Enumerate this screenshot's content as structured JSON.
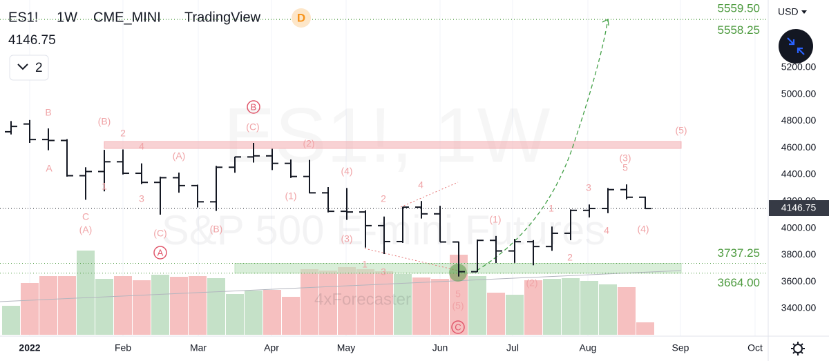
{
  "chart_data": {
    "type": "ohlc",
    "symbol": "ES1!",
    "interval": "1W",
    "exchange": "CME_MINI",
    "source": "TradingView",
    "badge": "D",
    "layout_count": "2",
    "currency": "USD",
    "watermark": "ES1!, 1W",
    "watermark_subtitle": "S&P 500 E-mini Futures",
    "author_watermark": "4xForecaster",
    "open": [
      4720,
      4778,
      4662,
      4655,
      4392,
      4423,
      4496,
      4410,
      4342,
      4377,
      4318,
      4197,
      4455,
      4532,
      4540,
      4484,
      4386,
      4264,
      4126,
      4121,
      4019,
      3900,
      4157,
      4107,
      3897,
      3675,
      3909,
      3830,
      3899,
      3863,
      3962,
      4133,
      4147,
      4288,
      4231
    ],
    "high": [
      4800,
      4808,
      4745,
      4665,
      4455,
      4585,
      4588,
      4484,
      4385,
      4415,
      4325,
      4465,
      4534,
      4637,
      4593,
      4513,
      4510,
      4307,
      4300,
      4134,
      4087,
      4160,
      4203,
      4167,
      3900,
      3915,
      3942,
      3920,
      3911,
      4012,
      4140,
      4177,
      4300,
      4327,
      4236
    ],
    "low": [
      4700,
      4637,
      4582,
      4385,
      4212,
      4275,
      4401,
      4329,
      4101,
      4265,
      4155,
      4129,
      4414,
      4490,
      4434,
      4375,
      4260,
      4118,
      4062,
      3855,
      3807,
      3890,
      4072,
      3897,
      3639,
      3673,
      3740,
      3741,
      3723,
      3831,
      3910,
      4080,
      4112,
      4216,
      4145
    ],
    "close": [
      4760,
      4662,
      4655,
      4392,
      4423,
      4496,
      4410,
      4342,
      4377,
      4318,
      4197,
      4455,
      4532,
      4540,
      4484,
      4386,
      4264,
      4126,
      4121,
      4019,
      3900,
      4157,
      4107,
      3897,
      3675,
      3909,
      3830,
      3899,
      3863,
      3962,
      4133,
      4147,
      4288,
      4231,
      4146.75
    ],
    "bar_color": "#131722",
    "volume": {
      "values": [
        42,
        75,
        85,
        85,
        122,
        81,
        85,
        79,
        87,
        84,
        85,
        82,
        59,
        64,
        65,
        55,
        95,
        93,
        98,
        95,
        92,
        88,
        83,
        81,
        116,
        85,
        61,
        58,
        79,
        81,
        82,
        78,
        73,
        69,
        18
      ],
      "up_color": "#c5e1c8",
      "down_color": "#f6c0c0",
      "vlim": [
        0,
        485
      ]
    },
    "ylim": [
      3204,
      5704
    ],
    "yticks": [
      {
        "value": 3400,
        "label": "3400.00"
      },
      {
        "value": 3600,
        "label": "3600.00"
      },
      {
        "value": 3800,
        "label": "3800.00"
      },
      {
        "value": 4000,
        "label": "4000.00"
      },
      {
        "value": 4200,
        "label": "4200.00"
      },
      {
        "value": 4400,
        "label": "4400.00"
      },
      {
        "value": 4600,
        "label": "4600.00"
      },
      {
        "value": 4800,
        "label": "4800.00"
      },
      {
        "value": 5000,
        "label": "5000.00"
      },
      {
        "value": 5200,
        "label": "5200.00"
      }
    ],
    "xtick_labels": [
      "2022",
      "Feb",
      "Mar",
      "Apr",
      "May",
      "Jun",
      "Jul",
      "Aug",
      "Sep",
      "Oct"
    ],
    "grid": true,
    "levels": [
      {
        "value": 5559.5,
        "label": "5559.50"
      },
      {
        "value": 5558.25,
        "label": "5558.25"
      },
      {
        "value": 3737.25,
        "label": "3737.25"
      },
      {
        "value": 3664,
        "label": "3664.00"
      }
    ],
    "level_color": "#4c9a3e",
    "zones": [
      {
        "top": 4647,
        "bottom": 4596,
        "color": "#f4b4b8"
      },
      {
        "top": 3737.25,
        "bottom": 3664,
        "color": "#bfe3bf"
      }
    ],
    "annotations": [
      "B",
      "(B)",
      "2",
      "4",
      "A",
      "1",
      "3",
      "C",
      "(A)",
      "(A)",
      "(C)",
      "(B)",
      "A",
      "B",
      "(C)",
      "(2)",
      "(4)",
      "(1)",
      "2",
      "4",
      "(3)",
      "1",
      "3",
      "(1)",
      "5",
      "(5)",
      "C",
      "(2)",
      "1",
      "2",
      "3",
      "4",
      "(3)",
      "5",
      "(4)",
      "(5)"
    ]
  }
}
